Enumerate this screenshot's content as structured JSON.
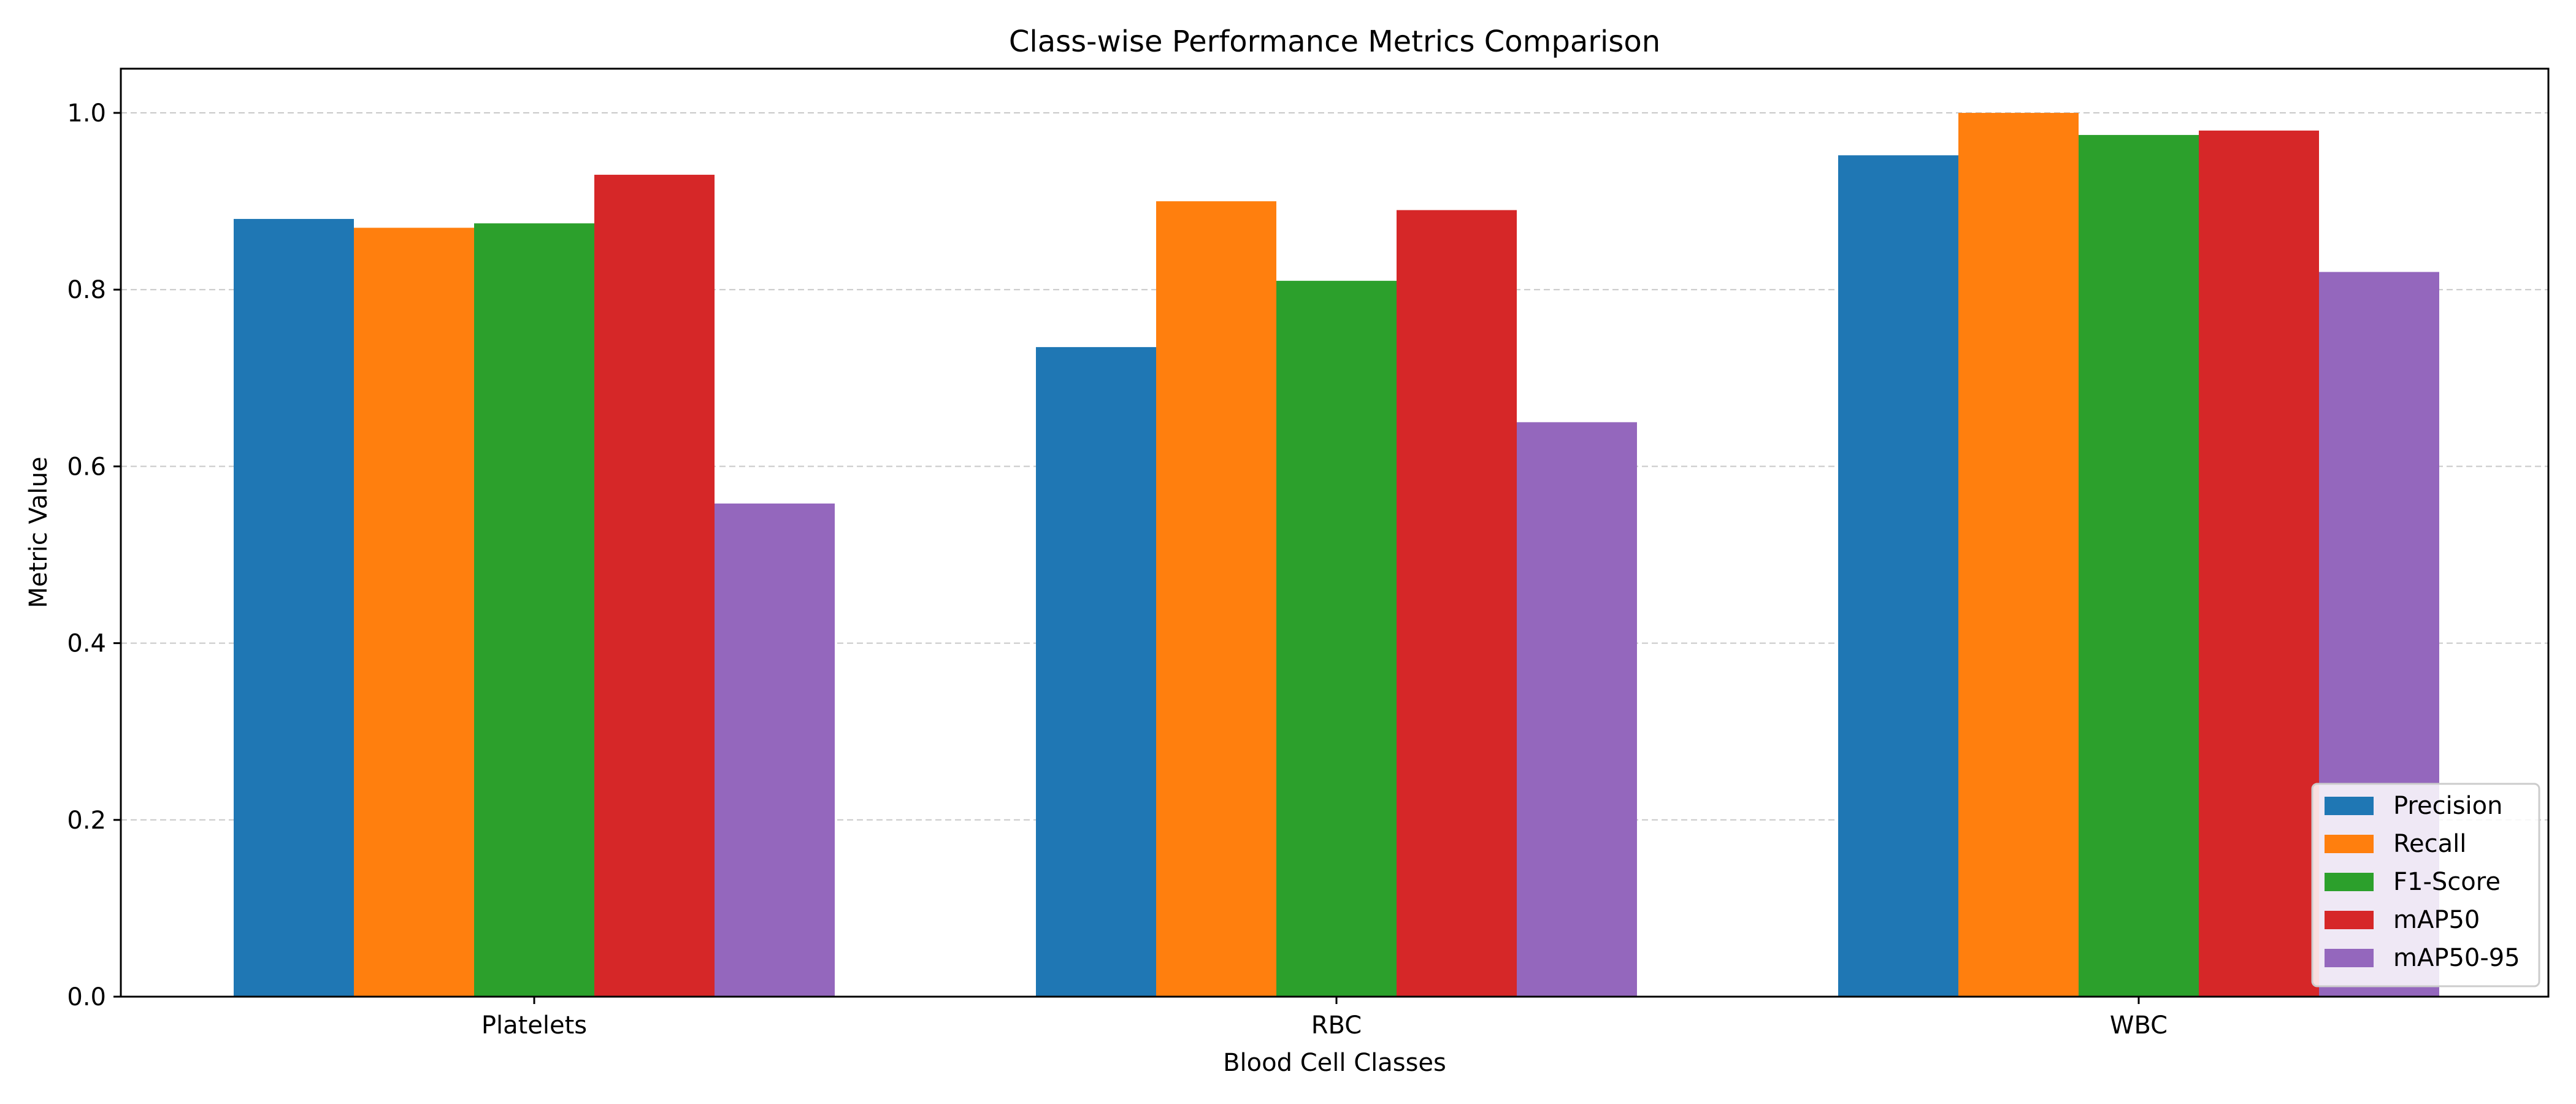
{
  "chart_data": {
    "type": "bar",
    "title": "Class-wise Performance Metrics Comparison",
    "xlabel": "Blood Cell Classes",
    "ylabel": "Metric Value",
    "ylim": [
      0,
      1.05
    ],
    "yticks": [
      "0.0",
      "0.2",
      "0.4",
      "0.6",
      "0.8",
      "1.0"
    ],
    "ytick_values": [
      0.0,
      0.2,
      0.4,
      0.6,
      0.8,
      1.0
    ],
    "grid": "y-dashed",
    "legend_position": "bottom-right",
    "categories": [
      "Platelets",
      "RBC",
      "WBC"
    ],
    "series": [
      {
        "name": "Precision",
        "color": "#1f77b4",
        "values": [
          0.88,
          0.735,
          0.952
        ]
      },
      {
        "name": "Recall",
        "color": "#ff7f0e",
        "values": [
          0.87,
          0.9,
          1.0
        ]
      },
      {
        "name": "F1-Score",
        "color": "#2ca02c",
        "values": [
          0.875,
          0.81,
          0.975
        ]
      },
      {
        "name": "mAP50",
        "color": "#d62728",
        "values": [
          0.93,
          0.89,
          0.98
        ]
      },
      {
        "name": "mAP50-95",
        "color": "#9467bd",
        "values": [
          0.558,
          0.65,
          0.82
        ]
      }
    ]
  }
}
